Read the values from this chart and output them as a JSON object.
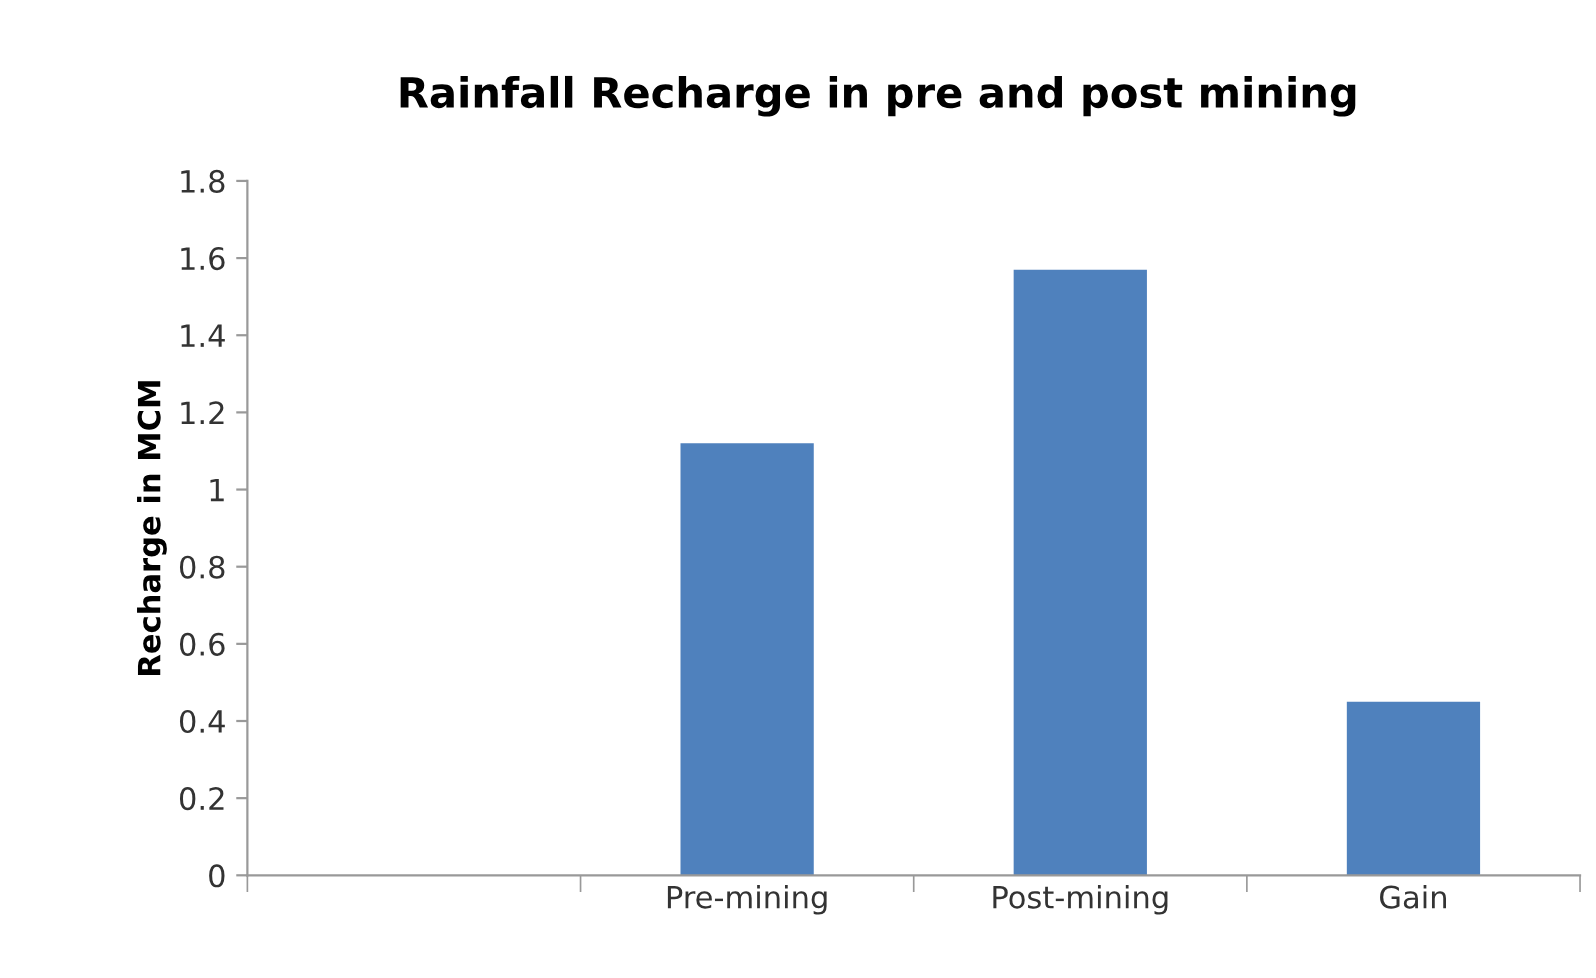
{
  "chart_data": {
    "type": "bar",
    "title": "Rainfall Recharge in pre and post mining",
    "ylabel": "Recharge in MCM",
    "categories": [
      null,
      "Pre-mining",
      "Post-mining",
      "Gain"
    ],
    "values": [
      null,
      1.12,
      1.57,
      0.45
    ],
    "color": "#4f81bd",
    "ylim": [
      0,
      1.8
    ],
    "yticks": [
      0,
      0.2,
      0.4,
      0.6,
      0.8,
      1,
      1.2,
      1.4,
      1.6,
      1.8
    ],
    "grid": false,
    "legend": false
  }
}
